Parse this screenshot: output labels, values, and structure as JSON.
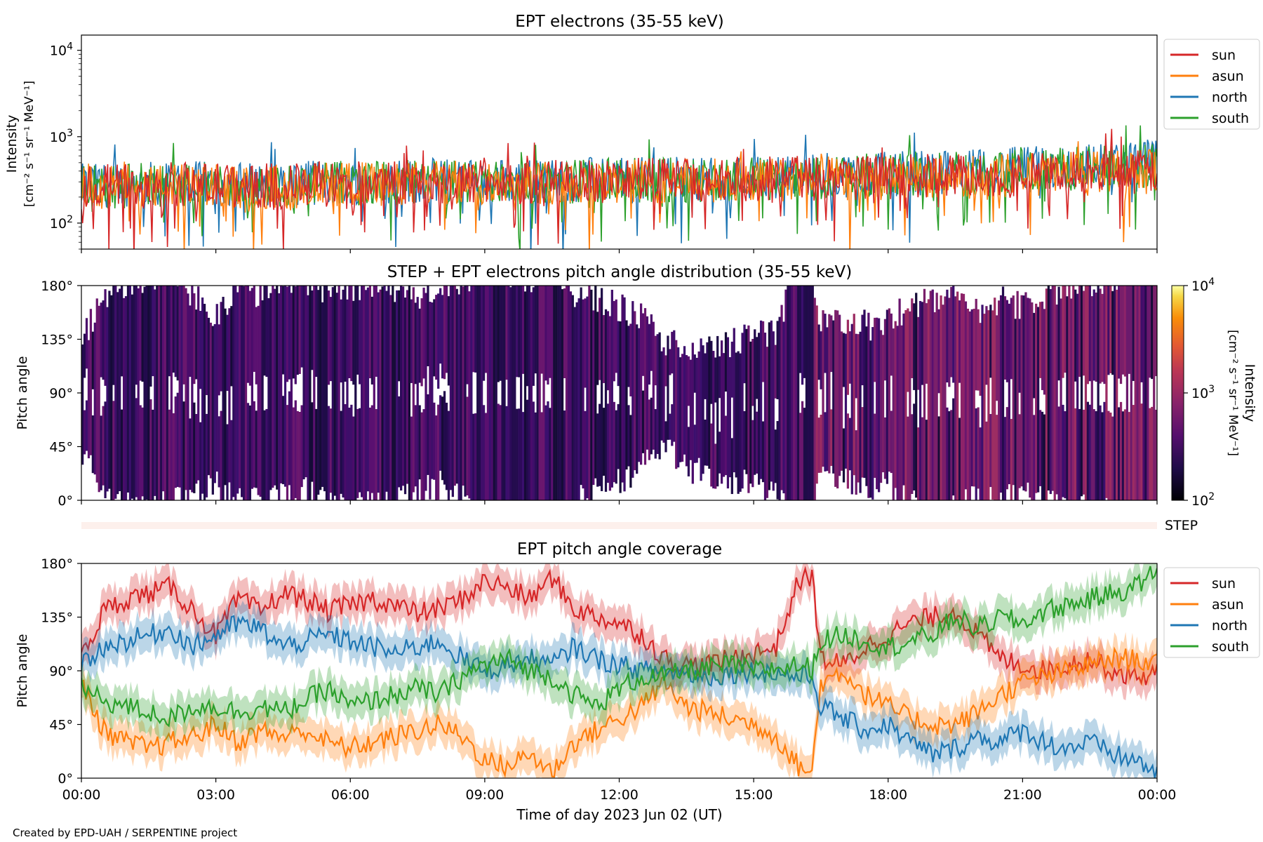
{
  "figure": {
    "xlabel": "Time of day 2023 Jun 02 (UT)",
    "credit": "Created by EPD-UAH / SERPENTINE project",
    "x_ticks": [
      "00:00",
      "03:00",
      "06:00",
      "09:00",
      "12:00",
      "15:00",
      "18:00",
      "21:00",
      "00:00"
    ],
    "x_range_hours": [
      0,
      24
    ]
  },
  "colors": {
    "sun": "#d62728",
    "asun": "#ff7f0e",
    "north": "#1f77b4",
    "south": "#2ca02c",
    "step_band": "#fdf0ec"
  },
  "chart_data": [
    {
      "type": "line",
      "title": "EPT electrons (35-55 keV)",
      "ylabel_line1": "Intensity",
      "ylabel_line2": "[cm⁻² s⁻¹ sr⁻¹ MeV⁻¹]",
      "yscale": "log",
      "ylim": [
        50,
        15000
      ],
      "y_ticks": [
        {
          "base": "10",
          "exp": "2",
          "value": 100
        },
        {
          "base": "10",
          "exp": "3",
          "value": 1000
        },
        {
          "base": "10",
          "exp": "4",
          "value": 10000
        }
      ],
      "legend": [
        "sun",
        "asun",
        "north",
        "south"
      ],
      "legend_placement": "outside-right",
      "series": [
        {
          "name": "sun",
          "x_hours": [
            0,
            2,
            4,
            6,
            8,
            10,
            12,
            14,
            16,
            18,
            20,
            22,
            24
          ],
          "values": [
            260,
            280,
            270,
            290,
            300,
            300,
            310,
            320,
            330,
            340,
            360,
            380,
            400
          ]
        },
        {
          "name": "asun",
          "x_hours": [
            0,
            2,
            4,
            6,
            8,
            10,
            12,
            14,
            16,
            18,
            20,
            22,
            24
          ],
          "values": [
            250,
            270,
            260,
            280,
            290,
            300,
            300,
            310,
            320,
            330,
            350,
            370,
            390
          ]
        },
        {
          "name": "north",
          "x_hours": [
            0,
            2,
            4,
            6,
            8,
            10,
            12,
            14,
            16,
            18,
            20,
            22,
            24
          ],
          "values": [
            270,
            290,
            280,
            300,
            310,
            310,
            320,
            330,
            350,
            370,
            400,
            450,
            500
          ]
        },
        {
          "name": "south",
          "x_hours": [
            0,
            2,
            4,
            6,
            8,
            10,
            12,
            14,
            16,
            18,
            20,
            22,
            24
          ],
          "values": [
            260,
            280,
            270,
            290,
            300,
            300,
            310,
            320,
            340,
            360,
            390,
            420,
            470
          ]
        }
      ]
    },
    {
      "type": "heatmap",
      "title": "STEP + EPT electrons pitch angle distribution (35-55 keV)",
      "ylabel": "Pitch angle",
      "ylim": [
        0,
        180
      ],
      "y_ticks": [
        "0°",
        "45°",
        "90°",
        "135°",
        "180°"
      ],
      "y_tick_values": [
        0,
        45,
        90,
        135,
        180
      ],
      "colorbar": {
        "label_line1": "Intensity",
        "label_line2": "[cm⁻² s⁻¹ sr⁻¹ MeV⁻¹]",
        "scale": "log",
        "range": [
          100,
          10000
        ],
        "ticks": [
          {
            "base": "10",
            "exp": "2",
            "value": 100
          },
          {
            "base": "10",
            "exp": "3",
            "value": 1000
          },
          {
            "base": "10",
            "exp": "4",
            "value": 10000
          }
        ],
        "colormap": "inferno"
      },
      "step_label": "STEP",
      "typical_intensity": 300
    },
    {
      "type": "line",
      "title": "EPT pitch angle coverage",
      "ylabel": "Pitch angle",
      "ylim": [
        0,
        180
      ],
      "y_ticks": [
        "0°",
        "45°",
        "90°",
        "135°",
        "180°"
      ],
      "y_tick_values": [
        0,
        45,
        90,
        135,
        180
      ],
      "legend": [
        "sun",
        "asun",
        "north",
        "south"
      ],
      "legend_placement": "outside-right",
      "x_hours": [
        0,
        0.5,
        1,
        1.5,
        2,
        2.5,
        3,
        3.5,
        4,
        4.5,
        5,
        5.5,
        6,
        6.5,
        7,
        7.5,
        8,
        8.5,
        9,
        9.5,
        10,
        10.5,
        11,
        11.5,
        12,
        12.5,
        13,
        13.5,
        14,
        14.5,
        15,
        15.5,
        16,
        16.3,
        16.5,
        17,
        17.5,
        18,
        18.5,
        19,
        19.5,
        20,
        20.5,
        21,
        21.5,
        22,
        22.5,
        23,
        23.5,
        24
      ],
      "series": [
        {
          "name": "sun",
          "values": [
            100,
            140,
            150,
            155,
            160,
            140,
            120,
            150,
            140,
            155,
            150,
            140,
            145,
            150,
            145,
            138,
            142,
            150,
            165,
            160,
            150,
            168,
            142,
            135,
            130,
            120,
            100,
            95,
            95,
            100,
            105,
            110,
            165,
            170,
            100,
            95,
            110,
            120,
            130,
            135,
            140,
            120,
            100,
            95,
            90,
            95,
            100,
            90,
            85,
            88
          ]
        },
        {
          "name": "asun",
          "values": [
            80,
            40,
            30,
            25,
            30,
            35,
            45,
            30,
            40,
            35,
            40,
            30,
            25,
            30,
            35,
            40,
            45,
            35,
            15,
            10,
            20,
            5,
            30,
            40,
            50,
            60,
            80,
            60,
            55,
            50,
            45,
            35,
            10,
            5,
            80,
            90,
            70,
            60,
            50,
            45,
            45,
            55,
            70,
            80,
            85,
            90,
            95,
            100,
            100,
            95
          ]
        },
        {
          "name": "north",
          "values": [
            95,
            110,
            115,
            120,
            125,
            110,
            120,
            130,
            125,
            110,
            115,
            120,
            115,
            110,
            105,
            110,
            115,
            100,
            90,
            95,
            100,
            95,
            110,
            100,
            95,
            90,
            90,
            88,
            85,
            88,
            90,
            88,
            85,
            85,
            60,
            50,
            40,
            45,
            30,
            20,
            25,
            35,
            30,
            40,
            30,
            25,
            30,
            20,
            15,
            5
          ]
        },
        {
          "name": "south",
          "values": [
            75,
            65,
            60,
            55,
            50,
            60,
            60,
            55,
            60,
            55,
            65,
            75,
            60,
            65,
            70,
            75,
            70,
            85,
            95,
            100,
            90,
            85,
            70,
            60,
            75,
            85,
            85,
            90,
            92,
            95,
            90,
            92,
            95,
            92,
            115,
            120,
            115,
            110,
            115,
            120,
            135,
            125,
            135,
            130,
            140,
            145,
            150,
            155,
            160,
            175
          ]
        }
      ]
    }
  ]
}
